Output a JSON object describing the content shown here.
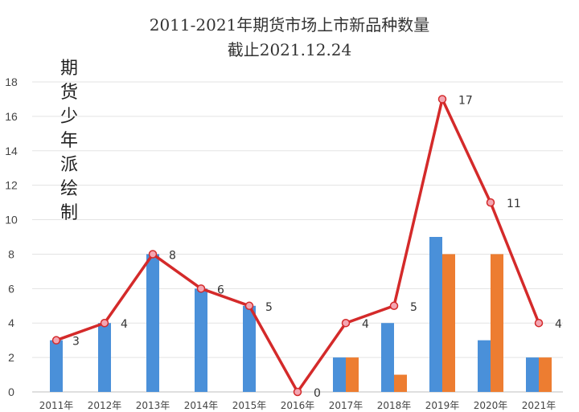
{
  "chart_data": {
    "type": "bar",
    "title": "2011-2021年期货市场上市新品种数量",
    "subtitle": "截止2021.12.24",
    "watermark": [
      "期",
      "货",
      "少",
      "年",
      "派",
      "绘",
      "制"
    ],
    "categories": [
      "2011年",
      "2012年",
      "2013年",
      "2014年",
      "2015年",
      "2016年",
      "2017年",
      "2018年",
      "2019年",
      "2020年",
      "2021年"
    ],
    "series": [
      {
        "type": "bar",
        "color": "#4a90d9",
        "values": [
          3,
          4,
          8,
          6,
          5,
          0,
          2,
          4,
          9,
          3,
          2
        ]
      },
      {
        "type": "bar",
        "color": "#ed7d31",
        "values": [
          0,
          0,
          0,
          0,
          0,
          0,
          2,
          1,
          8,
          8,
          2
        ]
      },
      {
        "type": "line",
        "color": "#d42a2a",
        "values": [
          3,
          4,
          8,
          6,
          5,
          0,
          4,
          5,
          17,
          11,
          4
        ]
      }
    ],
    "data_labels": [
      "3",
      "4",
      "8",
      "6",
      "5",
      "0",
      "4",
      "5",
      "17",
      "11",
      "4"
    ],
    "ylim": [
      0,
      18
    ],
    "yticks": [
      "0",
      "2",
      "4",
      "6",
      "8",
      "10",
      "12",
      "14",
      "16",
      "18"
    ],
    "grid": true,
    "legend": "none"
  }
}
